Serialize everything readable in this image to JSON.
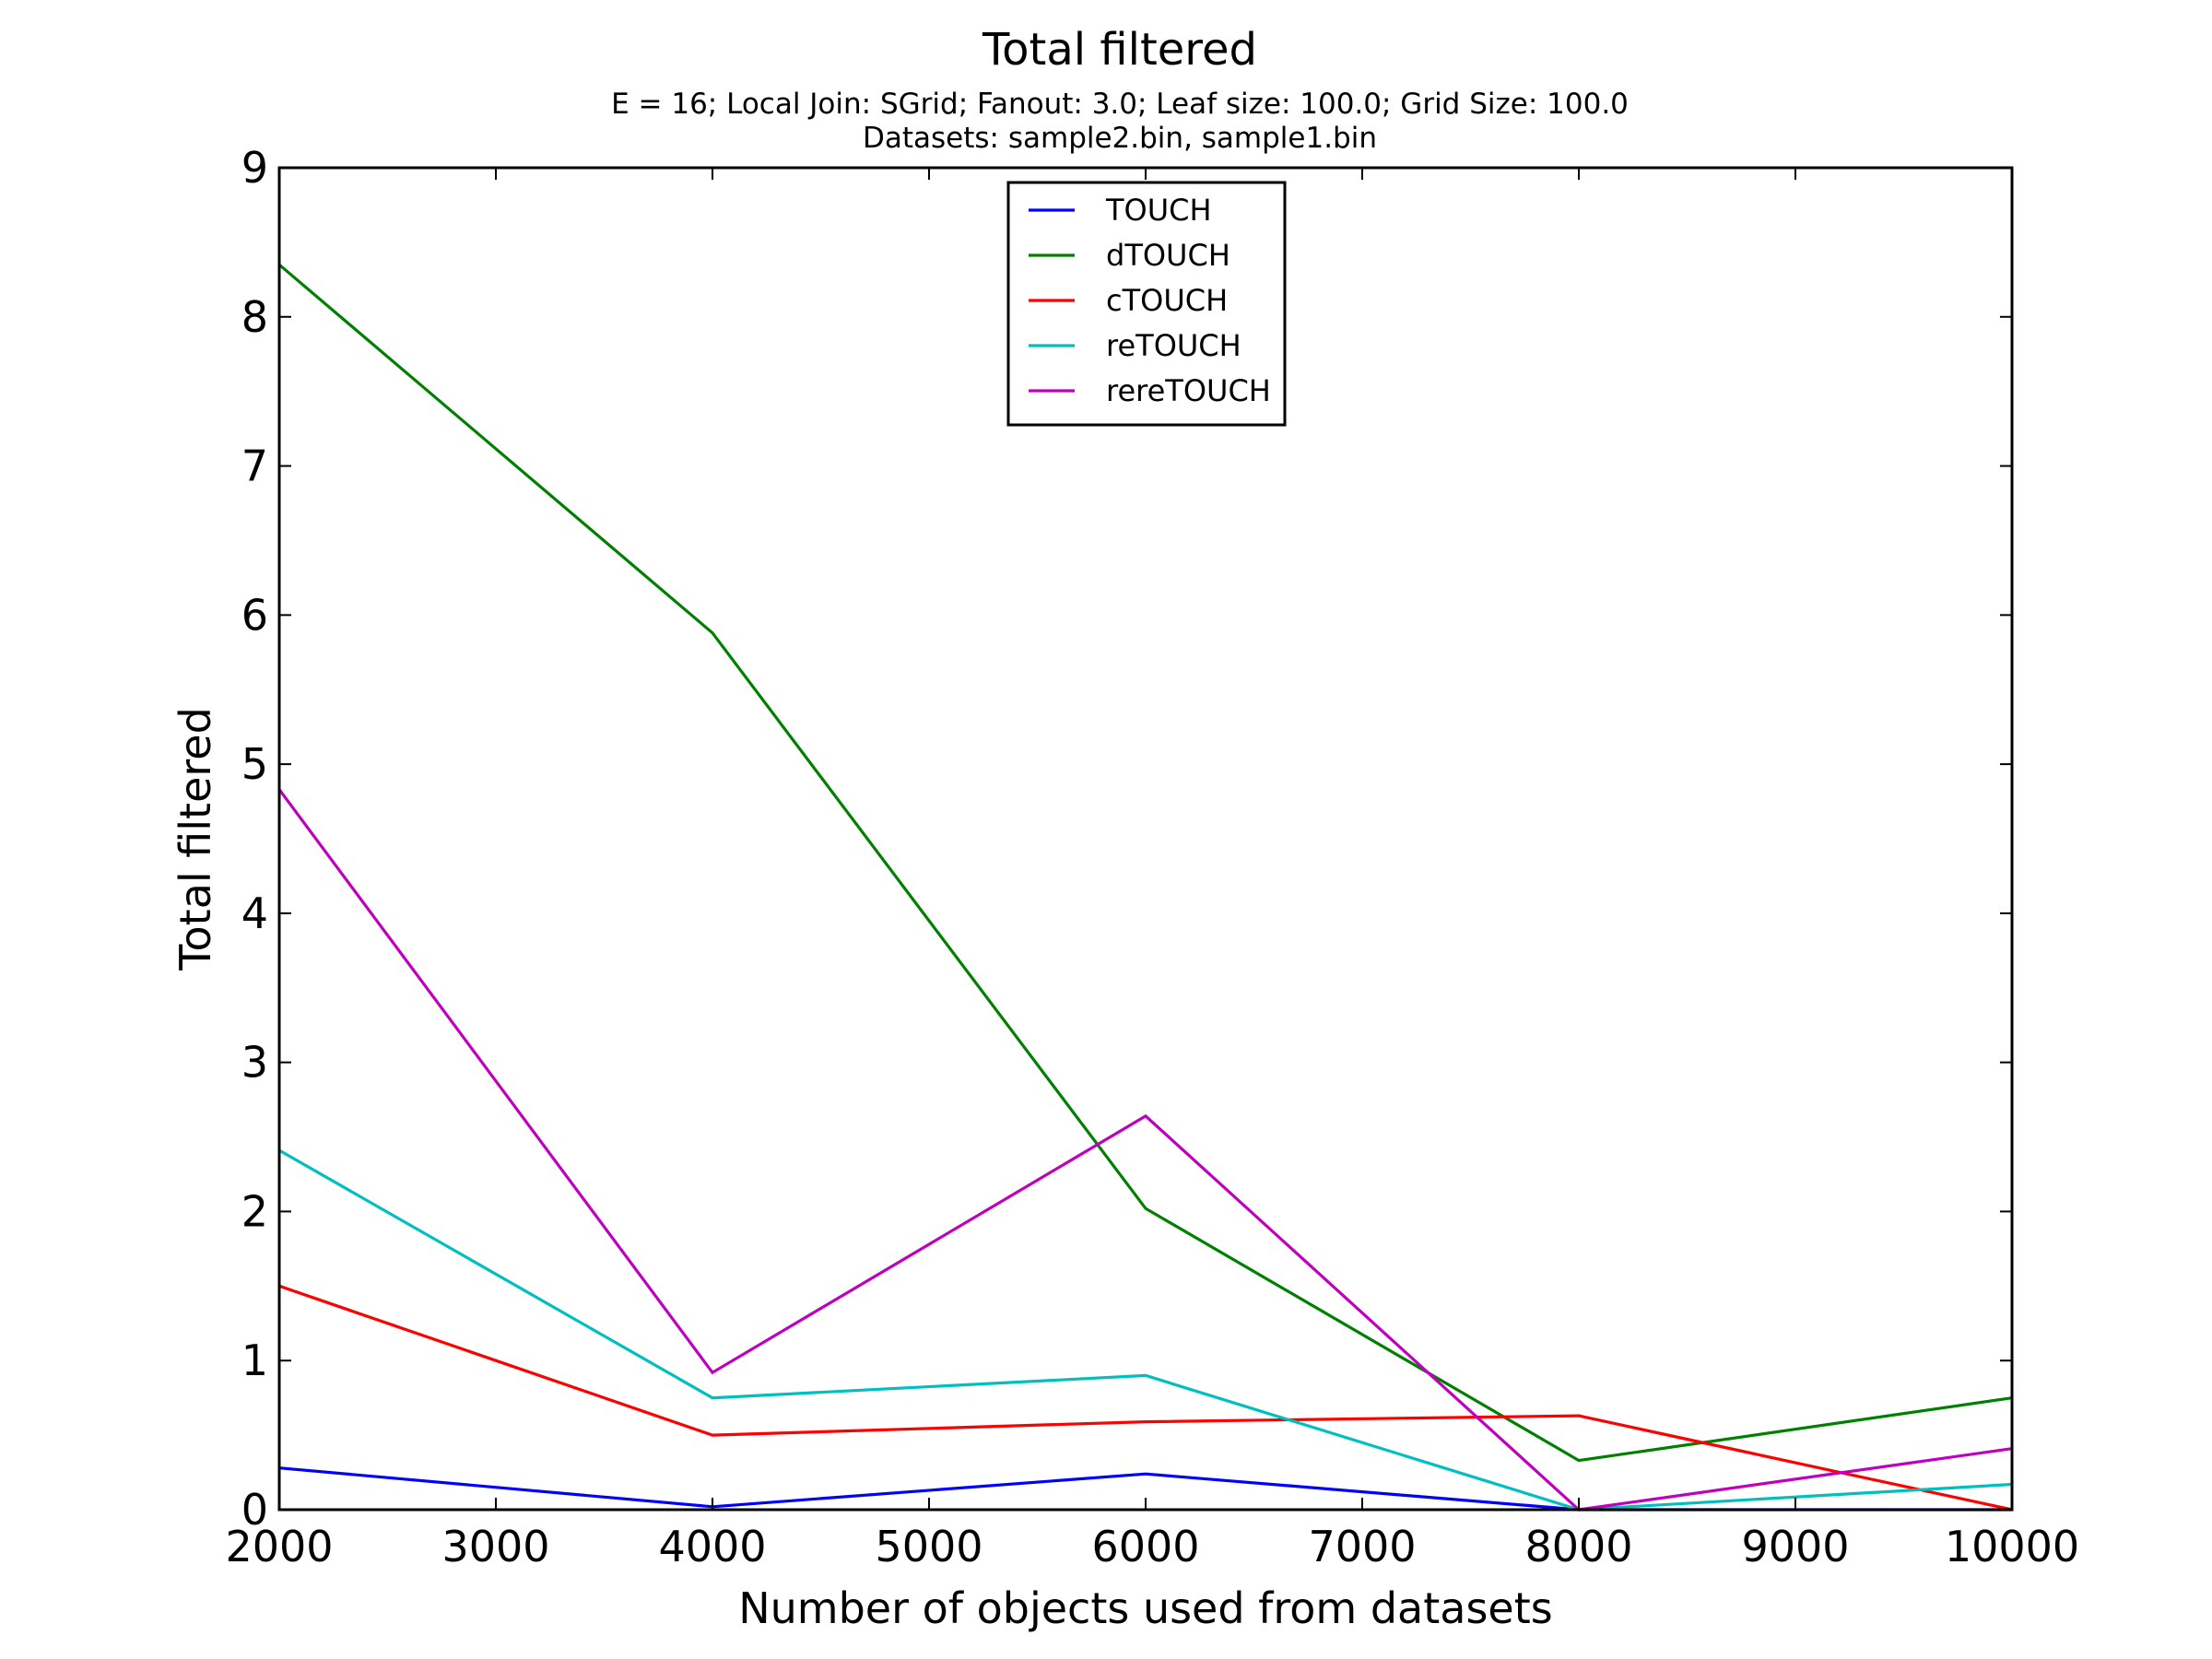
{
  "chart_data": {
    "type": "line",
    "title": "Total filtered",
    "subtitle_lines": [
      "E = 16; Local Join: SGrid; Fanout: 3.0; Leaf size: 100.0; Grid Size: 100.0",
      "Datasets: sample2.bin, sample1.bin"
    ],
    "xlabel": "Number of objects used from datasets",
    "ylabel": "Total filtered",
    "xlim": [
      2000,
      10000
    ],
    "ylim": [
      0,
      9
    ],
    "x_ticks": [
      2000,
      3000,
      4000,
      5000,
      6000,
      7000,
      8000,
      9000,
      10000
    ],
    "y_ticks": [
      0,
      1,
      2,
      3,
      4,
      5,
      6,
      7,
      8,
      9
    ],
    "grid": false,
    "legend_position": "upper-center",
    "x": [
      2000,
      4000,
      6000,
      8000,
      10000
    ],
    "series": [
      {
        "name": "TOUCH",
        "color": "#0000ff",
        "values": [
          0.28,
          0.02,
          0.24,
          0.0,
          0.0
        ]
      },
      {
        "name": "dTOUCH",
        "color": "#008000",
        "values": [
          8.35,
          5.88,
          2.02,
          0.33,
          0.75
        ]
      },
      {
        "name": "cTOUCH",
        "color": "#ff0000",
        "values": [
          1.5,
          0.5,
          0.59,
          0.63,
          0.0
        ]
      },
      {
        "name": "reTOUCH",
        "color": "#00bfbf",
        "values": [
          2.41,
          0.75,
          0.9,
          0.0,
          0.17
        ]
      },
      {
        "name": "rereTOUCH",
        "color": "#bf00bf",
        "values": [
          4.83,
          0.92,
          2.64,
          0.0,
          0.41
        ]
      }
    ]
  }
}
